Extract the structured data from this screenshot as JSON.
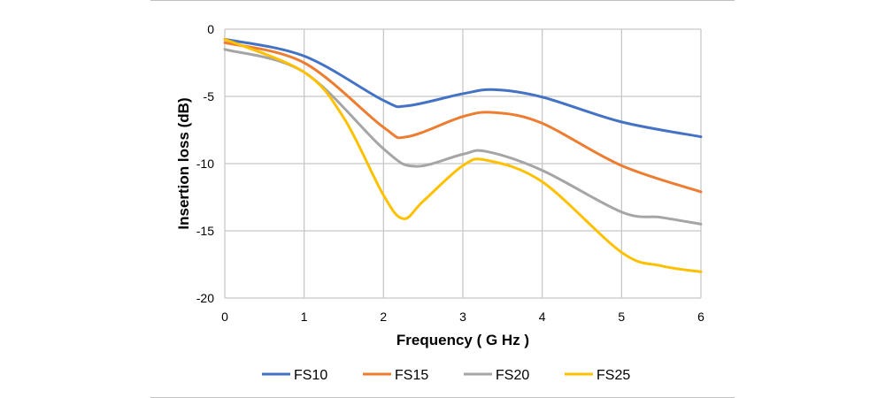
{
  "chart_data": {
    "type": "line",
    "xlabel": "Frequency ( G Hz )",
    "ylabel": "Insertion loss (dB)",
    "xlim": [
      0,
      6
    ],
    "ylim": [
      -20,
      0
    ],
    "xticks": [
      "0",
      "1",
      "2",
      "3",
      "4",
      "5",
      "6"
    ],
    "yticks": [
      "0",
      "-5",
      "-10",
      "-15",
      "-20"
    ],
    "grid": true,
    "legend": "bottom",
    "series": [
      {
        "name": "FS10",
        "color": "#4472C4",
        "points": [
          [
            0,
            -0.75
          ],
          [
            1,
            -2.0
          ],
          [
            2,
            -5.3
          ],
          [
            2.3,
            -5.7
          ],
          [
            3,
            -4.8
          ],
          [
            3.4,
            -4.5
          ],
          [
            4,
            -5.05
          ],
          [
            5,
            -6.9
          ],
          [
            6,
            -8.0
          ]
        ]
      },
      {
        "name": "FS15",
        "color": "#ED7D31",
        "points": [
          [
            0,
            -1.0
          ],
          [
            1,
            -2.5
          ],
          [
            2,
            -7.3
          ],
          [
            2.3,
            -8.0
          ],
          [
            3,
            -6.5
          ],
          [
            3.4,
            -6.2
          ],
          [
            4,
            -7.0
          ],
          [
            5,
            -10.15
          ],
          [
            6,
            -12.1
          ]
        ]
      },
      {
        "name": "FS20",
        "color": "#A5A5A5",
        "points": [
          [
            0,
            -1.5
          ],
          [
            1,
            -3.2
          ],
          [
            2,
            -8.9
          ],
          [
            2.4,
            -10.2
          ],
          [
            3,
            -9.3
          ],
          [
            3.3,
            -9.1
          ],
          [
            4,
            -10.5
          ],
          [
            5,
            -13.6
          ],
          [
            5.5,
            -14.0
          ],
          [
            6,
            -14.5
          ]
        ]
      },
      {
        "name": "FS25",
        "color": "#FFC000",
        "points": [
          [
            0,
            -0.75
          ],
          [
            1,
            -3.2
          ],
          [
            1.5,
            -6.6
          ],
          [
            2,
            -12.35
          ],
          [
            2.25,
            -14.1
          ],
          [
            2.5,
            -12.8
          ],
          [
            3,
            -10.15
          ],
          [
            3.3,
            -9.75
          ],
          [
            4,
            -11.35
          ],
          [
            5,
            -16.6
          ],
          [
            5.5,
            -17.6
          ],
          [
            6,
            -18.05
          ]
        ]
      }
    ]
  }
}
